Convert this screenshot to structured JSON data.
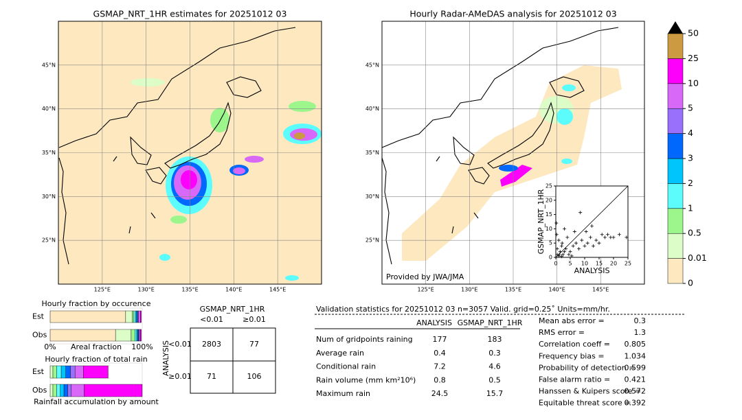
{
  "maps": [
    {
      "title": "GSMAP_NRT_1HR estimates for 20251012 03",
      "lonlim": [
        120,
        150
      ],
      "latlim": [
        20,
        50
      ],
      "lonticks": [
        {
          "value": 125,
          "label": "125°E"
        },
        {
          "value": 130,
          "label": "130°E"
        },
        {
          "value": 135,
          "label": "135°E"
        },
        {
          "value": 140,
          "label": "140°E"
        },
        {
          "value": 145,
          "label": "145°E"
        }
      ],
      "latticks": [
        {
          "value": 45,
          "label": "45°N"
        },
        {
          "value": 40,
          "label": "40°N"
        },
        {
          "value": 35,
          "label": "35°N"
        },
        {
          "value": 30,
          "label": "30°N"
        },
        {
          "value": 25,
          "label": "25°N"
        }
      ]
    },
    {
      "title": "Hourly Radar-AMeDAS analysis for 20251012 03",
      "credit": "Provided by JWA/JMA",
      "lonlim": [
        120,
        150
      ],
      "latlim": [
        20,
        50
      ],
      "lonticks": [
        {
          "value": 125,
          "label": "125°E"
        },
        {
          "value": 130,
          "label": "130°E"
        },
        {
          "value": 135,
          "label": "135°E"
        },
        {
          "value": 140,
          "label": "140°E"
        },
        {
          "value": 145,
          "label": "145°E"
        }
      ],
      "latticks": [
        {
          "value": 45,
          "label": "45°N"
        },
        {
          "value": 40,
          "label": "40°N"
        },
        {
          "value": 35,
          "label": "35°N"
        },
        {
          "value": 30,
          "label": "30°N"
        },
        {
          "value": 25,
          "label": "25°N"
        }
      ]
    }
  ],
  "chart_data": [
    {
      "type": "colorbar",
      "levels": [
        0,
        0.01,
        0.5,
        1,
        2,
        3,
        4,
        5,
        10,
        25,
        50
      ],
      "colors": [
        "#fde8c0",
        "#dcfcc8",
        "#9cf68c",
        "#5cfcfc",
        "#00c4fc",
        "#0068fc",
        "#9870fc",
        "#d868f8",
        "#fc00fc",
        "#cc9a40"
      ],
      "extend_color": "#000000"
    },
    {
      "type": "scatter",
      "xlabel": "ANALYSIS",
      "ylabel": "GSMAP_NRT_1HR",
      "xlim": [
        0,
        25
      ],
      "ylim": [
        0,
        25
      ],
      "xticks": [
        0,
        5,
        10,
        15,
        20,
        25
      ],
      "yticks": [
        0,
        5,
        10,
        15,
        20,
        25
      ],
      "x": [
        0.5,
        1,
        1.5,
        2,
        2.5,
        3,
        0.3,
        1.2,
        2.2,
        3.5,
        4,
        5,
        6,
        7,
        8,
        9,
        10,
        11,
        12,
        13,
        14,
        15,
        16,
        17,
        18,
        19,
        20,
        22,
        24.5,
        8.5,
        10.5,
        12.5,
        3,
        4.5,
        6.5,
        1,
        2,
        0.5,
        0.2,
        5.5
      ],
      "y": [
        3,
        6,
        2,
        4,
        1,
        2,
        8,
        1,
        5,
        3,
        7,
        2,
        4,
        5,
        3,
        6,
        4,
        5,
        7,
        4,
        6,
        5,
        8,
        7,
        8,
        7,
        7,
        8,
        7,
        15.7,
        9,
        11,
        10,
        1,
        9,
        0.5,
        0.3,
        1,
        12,
        0.5
      ]
    },
    {
      "type": "stacked-barh",
      "title": "Hourly fraction by occurence",
      "categories": [
        "Est",
        "Obs"
      ],
      "xlim": [
        0,
        100
      ],
      "xticks": [
        {
          "value": 0,
          "label": "0%"
        },
        {
          "value": 100,
          "label": "100%"
        }
      ],
      "xlabel": "Areal fraction",
      "series": [
        {
          "color": "#fde8c0",
          "values": [
            82,
            71
          ]
        },
        {
          "color": "#dcfcc8",
          "values": [
            7,
            17
          ]
        },
        {
          "color": "#9cf68c",
          "values": [
            2,
            4
          ]
        },
        {
          "color": "#5cfcfc",
          "values": [
            2,
            2
          ]
        },
        {
          "color": "#00c4fc",
          "values": [
            1,
            1
          ]
        },
        {
          "color": "#0068fc",
          "values": [
            1,
            1
          ]
        },
        {
          "color": "#9870fc",
          "values": [
            1,
            1
          ]
        },
        {
          "color": "#d868f8",
          "values": [
            2,
            1
          ]
        },
        {
          "color": "#fc00fc",
          "values": [
            1,
            1
          ]
        },
        {
          "color": "#cc9a40",
          "values": [
            0,
            0
          ]
        }
      ]
    },
    {
      "type": "stacked-barh",
      "title": "Hourly fraction of total rain",
      "categories": [
        "Est",
        "Obs"
      ],
      "xlim": [
        0,
        100
      ],
      "xlabel": "Rainfall accumulation by amount",
      "series": [
        {
          "color": "#fde8c0",
          "values": [
            0,
            0
          ]
        },
        {
          "color": "#dcfcc8",
          "values": [
            3,
            3
          ]
        },
        {
          "color": "#9cf68c",
          "values": [
            4,
            4
          ]
        },
        {
          "color": "#5cfcfc",
          "values": [
            5,
            4
          ]
        },
        {
          "color": "#00c4fc",
          "values": [
            5,
            4
          ]
        },
        {
          "color": "#0068fc",
          "values": [
            5,
            4
          ]
        },
        {
          "color": "#9870fc",
          "values": [
            5,
            4
          ]
        },
        {
          "color": "#d868f8",
          "values": [
            9,
            14
          ]
        },
        {
          "color": "#fc00fc",
          "values": [
            27,
            63
          ]
        },
        {
          "color": "#cc9a40",
          "values": [
            0,
            0
          ]
        }
      ]
    }
  ],
  "contingency": {
    "title": "GSMAP_NRT_1HR",
    "columns": [
      "<0.01",
      "≥0.01"
    ],
    "row_axis": "ANALYSIS",
    "rows": [
      "<0.01",
      "≥0.01"
    ],
    "cells": [
      [
        2803,
        77
      ],
      [
        71,
        106
      ]
    ]
  },
  "validation": {
    "header": "Validation statistics for 20251012 03  n=3057 Valid. grid=0.25˚ Units=mm/hr.",
    "columns": [
      "ANALYSIS",
      "GSMAP_NRT_1HR"
    ],
    "rows": [
      [
        "Num of gridpoints raining",
        177,
        183
      ],
      [
        "Average rain",
        0.4,
        0.3
      ],
      [
        "Conditional rain",
        7.2,
        4.6
      ],
      [
        "Rain volume (mm km²10⁶)",
        0.8,
        0.5
      ],
      [
        "Maximum rain",
        24.5,
        15.7
      ]
    ],
    "scores": [
      [
        "Mean abs error =",
        0.3
      ],
      [
        "RMS error =",
        1.3
      ],
      [
        "Correlation coeff =",
        0.805
      ],
      [
        "Frequency bias =",
        1.034
      ],
      [
        "Probability of detection =",
        0.599
      ],
      [
        "False alarm ratio =",
        0.421
      ],
      [
        "Hanssen & Kuipers score =",
        0.572
      ],
      [
        "Equitable threat score =",
        0.392
      ]
    ]
  }
}
